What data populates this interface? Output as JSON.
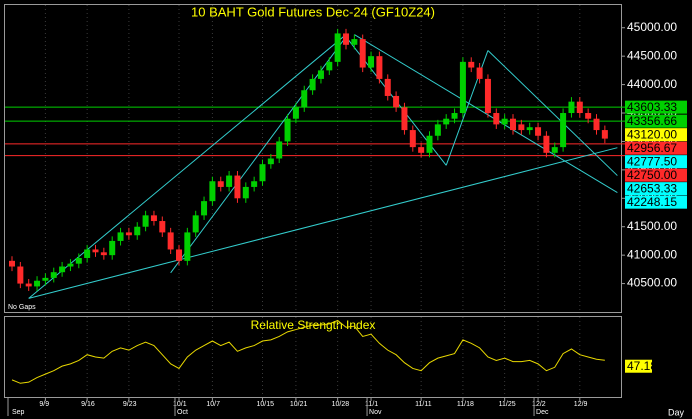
{
  "chart_data": [
    {
      "type": "candlestick",
      "title": "10 BAHT  Gold Futures Dec-24  (GF10Z24)",
      "note": "No Gaps",
      "open": [
        40900,
        40800,
        40500,
        40450,
        40550,
        40600,
        40700,
        40800,
        40850,
        40950,
        41100,
        41050,
        41000,
        41250,
        41400,
        41350,
        41500,
        41700,
        41600,
        41400,
        41100,
        40900,
        41400,
        41700,
        41950,
        42300,
        42200,
        42400,
        42000,
        42200,
        42300,
        42600,
        42700,
        43000,
        43400,
        43600,
        43900,
        44100,
        44250,
        44400,
        44900,
        44700,
        44800,
        44300,
        44500,
        44100,
        43800,
        43600,
        43200,
        42900,
        42800,
        43100,
        43300,
        43400,
        43500,
        44400,
        44300,
        44100,
        43500,
        43300,
        43400,
        43300,
        43200,
        43250,
        43100,
        42800,
        42900,
        43500,
        43700,
        43500,
        43400,
        43200
      ],
      "high": [
        40980,
        40880,
        40580,
        40630,
        40680,
        40780,
        40880,
        40930,
        41030,
        41180,
        41180,
        41130,
        41330,
        41480,
        41480,
        41580,
        41780,
        41780,
        41680,
        41480,
        41180,
        41480,
        41780,
        42030,
        42380,
        42380,
        42480,
        42480,
        42280,
        42380,
        42680,
        42780,
        43080,
        43480,
        43680,
        43980,
        44180,
        44330,
        44480,
        44980,
        44980,
        44880,
        44880,
        44580,
        44580,
        44180,
        43880,
        43680,
        43280,
        42980,
        43180,
        43380,
        43480,
        43580,
        44480,
        44480,
        44380,
        44180,
        43580,
        43480,
        43480,
        43380,
        43330,
        43330,
        43180,
        42980,
        43580,
        43780,
        43780,
        43580,
        43480,
        43280
      ],
      "low": [
        40720,
        40420,
        40370,
        40370,
        40470,
        40520,
        40620,
        40720,
        40770,
        40870,
        40970,
        40920,
        40920,
        41170,
        41270,
        41270,
        41420,
        41520,
        41320,
        41020,
        40820,
        40820,
        41320,
        41620,
        41870,
        42120,
        42120,
        41920,
        41920,
        42120,
        42220,
        42520,
        42620,
        42920,
        43320,
        43520,
        43820,
        44020,
        44170,
        44320,
        44620,
        44620,
        44220,
        44220,
        44020,
        43720,
        43520,
        43120,
        42820,
        42720,
        42720,
        43020,
        43220,
        43320,
        43420,
        44220,
        44020,
        43420,
        43220,
        43220,
        43120,
        43120,
        43120,
        43020,
        42720,
        42720,
        42820,
        43420,
        43420,
        43320,
        43120,
        42970
      ],
      "close": [
        40800,
        40500,
        40450,
        40550,
        40600,
        40700,
        40800,
        40850,
        40950,
        41100,
        41050,
        41000,
        41250,
        41400,
        41350,
        41500,
        41700,
        41600,
        41400,
        41100,
        40900,
        41400,
        41700,
        41950,
        42300,
        42200,
        42400,
        42000,
        42200,
        42300,
        42600,
        42700,
        43000,
        43400,
        43600,
        43900,
        44100,
        44250,
        44400,
        44900,
        44700,
        44800,
        44300,
        44500,
        44100,
        43800,
        43600,
        43200,
        42900,
        42800,
        43100,
        43300,
        43400,
        43500,
        44400,
        44300,
        44100,
        43500,
        43300,
        43400,
        43200,
        43200,
        43250,
        43100,
        42800,
        42900,
        43500,
        43700,
        43500,
        43400,
        43200,
        43050
      ],
      "up_color": "#00d000",
      "down_color": "#ff2a2a",
      "ylim": [
        40000,
        45400
      ],
      "yticks": [
        {
          "value": 40500,
          "label": "40500.00"
        },
        {
          "value": 41000,
          "label": "41000.00"
        },
        {
          "value": 41500,
          "label": "41500.00"
        },
        {
          "value": 42000,
          "label": "42000.00"
        },
        {
          "value": 42500,
          "label": "42500.00"
        },
        {
          "value": 43000,
          "label": "43000.00"
        },
        {
          "value": 43500,
          "label": "43500.00"
        },
        {
          "value": 44000,
          "label": "44000.00"
        },
        {
          "value": 44500,
          "label": "44500.00"
        },
        {
          "value": 45000,
          "label": "45000.00"
        }
      ],
      "levels": [
        {
          "value": 43603.33,
          "label": "43603.33",
          "color": "#00d000",
          "line": true
        },
        {
          "value": 43356.66,
          "label": "43356.66",
          "color": "#00d000",
          "line": true
        },
        {
          "value": 43120,
          "label": "43120.00",
          "color": "#ffff00",
          "line": false
        },
        {
          "value": 42956.67,
          "label": "42956.67",
          "color": "#ff2a2a",
          "line": true
        },
        {
          "value": 42777.5,
          "label": "42777.50",
          "color": "#00ffff",
          "line": false
        },
        {
          "value": 42750,
          "label": "42750.00",
          "color": "#ff2a2a",
          "line": true
        },
        {
          "value": 42653.33,
          "label": "42653.33",
          "color": "#00ffff",
          "line": false
        },
        {
          "value": 42248.15,
          "label": "42248.15",
          "color": "#00ffff",
          "line": false
        }
      ],
      "trendline_color": "#33cccc",
      "trendlines": [
        {
          "x": [
            2,
            40
          ],
          "y": [
            40240,
            44880
          ]
        },
        {
          "x": [
            2,
            72.5
          ],
          "y": [
            40240,
            42890
          ]
        },
        {
          "x": [
            19,
            40
          ],
          "y": [
            40690,
            44840
          ]
        },
        {
          "x": [
            40,
            52
          ],
          "y": [
            44840,
            42580
          ]
        },
        {
          "x": [
            41,
            72.5
          ],
          "y": [
            44880,
            42100
          ]
        },
        {
          "x": [
            52,
            57
          ],
          "y": [
            42580,
            44600
          ]
        },
        {
          "x": [
            57,
            72.5
          ],
          "y": [
            44600,
            42400
          ]
        }
      ],
      "xticks": [
        {
          "value": 4,
          "label": "9/9"
        },
        {
          "value": 9,
          "label": "9/16"
        },
        {
          "value": 14,
          "label": "9/23"
        },
        {
          "value": 20,
          "label": "10/1"
        },
        {
          "value": 24,
          "label": "10/7"
        },
        {
          "value": 30,
          "label": "10/15"
        },
        {
          "value": 34,
          "label": "10/21"
        },
        {
          "value": 39,
          "label": "10/28"
        },
        {
          "value": 43,
          "label": "11/1"
        },
        {
          "value": 49,
          "label": "11/11"
        },
        {
          "value": 54,
          "label": "11/18"
        },
        {
          "value": 59,
          "label": "11/25"
        },
        {
          "value": 63,
          "label": "12/2"
        },
        {
          "value": 68,
          "label": "12/9"
        }
      ],
      "months": [
        {
          "value": 0,
          "label": "Sep"
        },
        {
          "value": 20,
          "label": "Oct"
        },
        {
          "value": 43,
          "label": "Nov"
        },
        {
          "value": 63,
          "label": "Dec"
        }
      ],
      "period": "Day"
    },
    {
      "type": "line",
      "title": "Relative Strength Index",
      "color": "#e8d800",
      "ylim": [
        15,
        85
      ],
      "values": [
        30,
        27,
        28,
        32,
        35,
        38,
        42,
        44,
        47,
        52,
        50,
        49,
        55,
        58,
        56,
        60,
        63,
        60,
        52,
        44,
        40,
        50,
        56,
        60,
        64,
        60,
        63,
        55,
        58,
        60,
        64,
        65,
        68,
        72,
        74,
        76,
        78,
        78,
        79,
        82,
        76,
        77,
        68,
        70,
        62,
        56,
        52,
        45,
        40,
        38,
        45,
        49,
        51,
        53,
        65,
        62,
        58,
        50,
        47,
        49,
        46,
        46,
        47,
        44,
        38,
        41,
        53,
        57,
        52,
        50,
        48,
        47.18
      ],
      "last_label": "47.18",
      "label_color": "#ffff00"
    }
  ]
}
